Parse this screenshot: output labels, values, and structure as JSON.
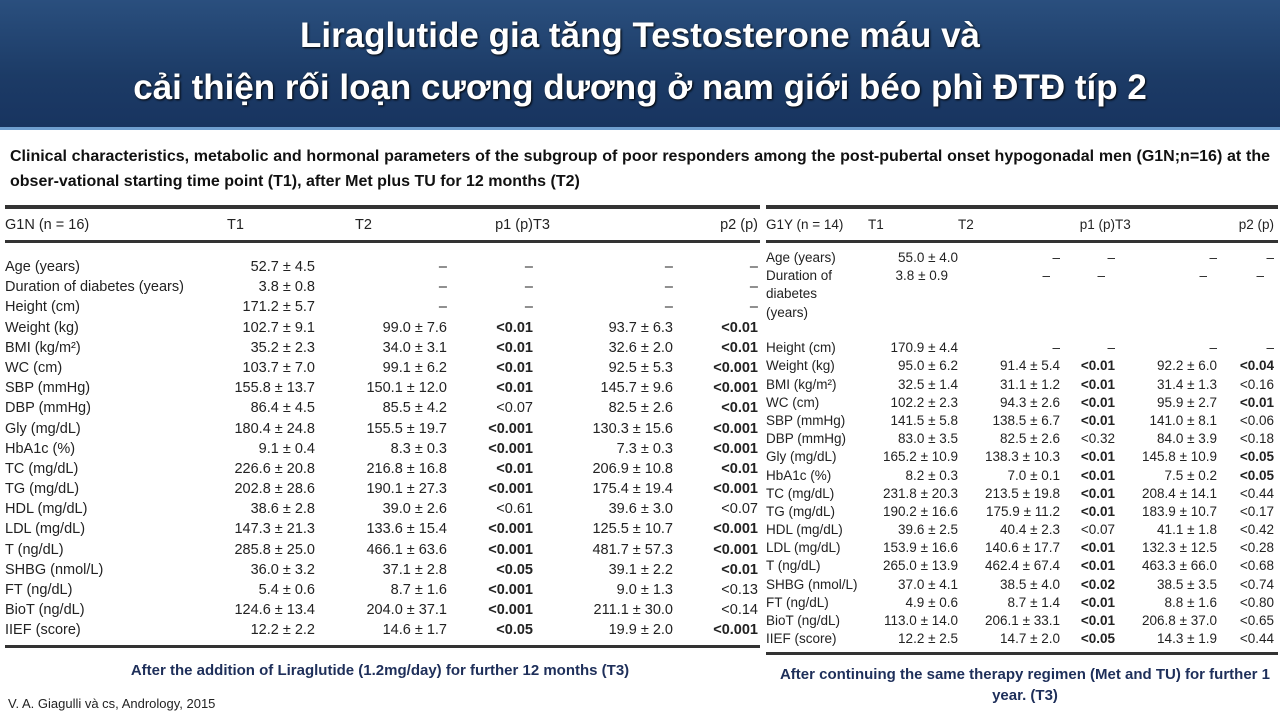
{
  "title": {
    "line1": "Liraglutide gia tăng Testosterone máu và",
    "line2": "cải thiện rối loạn cương dương ở nam giới béo phì ĐTĐ típ 2"
  },
  "subtitle": "Clinical characteristics, metabolic and hormonal parameters of the subgroup of poor responders among the post-pubertal onset hypogonadal men (G1N;n=16) at the obser-vational starting time point (T1), after Met plus TU for 12 months (T2)",
  "left_table": {
    "headers": [
      "G1N (n = 16)",
      "T1",
      "T2",
      "p1 (p)",
      "T3",
      "p2 (p)"
    ],
    "rows": [
      [
        "Age (years)",
        "52.7 ± 4.5",
        "–",
        "–",
        "–",
        "–"
      ],
      [
        "Duration of diabetes (years)",
        "3.8 ± 0.8",
        "–",
        "–",
        "–",
        "–"
      ],
      [
        "Height (cm)",
        "171.2 ± 5.7",
        "–",
        "–",
        "–",
        "–"
      ],
      [
        "Weight (kg)",
        "102.7 ± 9.1",
        "99.0 ± 7.6",
        "<0.01",
        "93.7 ± 6.3",
        "<0.01"
      ],
      [
        "BMI (kg/m²)",
        "35.2 ± 2.3",
        "34.0 ± 3.1",
        "<0.01",
        "32.6 ± 2.0",
        "<0.01"
      ],
      [
        "WC (cm)",
        "103.7 ± 7.0",
        "99.1 ± 6.2",
        "<0.01",
        "92.5 ± 5.3",
        "<0.001"
      ],
      [
        "SBP (mmHg)",
        "155.8 ± 13.7",
        "150.1 ± 12.0",
        "<0.01",
        "145.7 ± 9.6",
        "<0.001"
      ],
      [
        "DBP (mmHg)",
        "86.4 ± 4.5",
        "85.5 ± 4.2",
        "<0.07",
        "82.5 ± 2.6",
        "<0.01"
      ],
      [
        "Gly (mg/dL)",
        "180.4 ± 24.8",
        "155.5 ± 19.7",
        "<0.001",
        "130.3 ± 15.6",
        "<0.001"
      ],
      [
        "HbA1c (%)",
        "9.1 ± 0.4",
        "8.3 ± 0.3",
        "<0.001",
        "7.3 ± 0.3",
        "<0.001"
      ],
      [
        "TC (mg/dL)",
        "226.6 ± 20.8",
        "216.8 ± 16.8",
        "<0.01",
        "206.9 ± 10.8",
        "<0.01"
      ],
      [
        "TG (mg/dL)",
        "202.8 ± 28.6",
        "190.1 ± 27.3",
        "<0.001",
        "175.4 ± 19.4",
        "<0.001"
      ],
      [
        "HDL (mg/dL)",
        "38.6 ± 2.8",
        "39.0 ± 2.6",
        "<0.61",
        "39.6 ± 3.0",
        "<0.07"
      ],
      [
        "LDL (mg/dL)",
        "147.3 ± 21.3",
        "133.6 ± 15.4",
        "<0.001",
        "125.5 ± 10.7",
        "<0.001"
      ],
      [
        "T (ng/dL)",
        "285.8 ± 25.0",
        "466.1 ± 63.6",
        "<0.001",
        "481.7 ± 57.3",
        "<0.001"
      ],
      [
        "SHBG (nmol/L)",
        "36.0 ± 3.2",
        "37.1 ± 2.8",
        "<0.05",
        "39.1 ± 2.2",
        "<0.01"
      ],
      [
        "FT (ng/dL)",
        "5.4 ± 0.6",
        "8.7 ± 1.6",
        "<0.001",
        "9.0 ± 1.3",
        "<0.13"
      ],
      [
        "BioT (ng/dL)",
        "124.6 ± 13.4",
        "204.0 ± 37.1",
        "<0.001",
        "211.1 ± 30.0",
        "<0.14"
      ],
      [
        "IIEF (score)",
        "12.2 ± 2.2",
        "14.6 ± 1.7",
        "<0.05",
        "19.9 ± 2.0",
        "<0.001"
      ]
    ],
    "bold": [
      [
        0,
        0
      ],
      [
        0,
        0
      ],
      [
        0,
        0
      ],
      [
        1,
        1
      ],
      [
        1,
        1
      ],
      [
        1,
        1
      ],
      [
        1,
        1
      ],
      [
        0,
        1
      ],
      [
        1,
        1
      ],
      [
        1,
        1
      ],
      [
        1,
        1
      ],
      [
        1,
        1
      ],
      [
        0,
        0
      ],
      [
        1,
        1
      ],
      [
        1,
        1
      ],
      [
        1,
        1
      ],
      [
        1,
        0
      ],
      [
        1,
        0
      ],
      [
        1,
        1
      ]
    ]
  },
  "right_table": {
    "headers": [
      "G1Y (n = 14)",
      "T1",
      "T2",
      "p1 (p)",
      "T3",
      "p2 (p)"
    ],
    "rows": [
      [
        "Age (years)",
        "55.0 ± 4.0",
        "–",
        "–",
        "–",
        "–"
      ],
      [
        "Duration of diabetes (years)",
        "3.8 ± 0.9",
        "–",
        "–",
        "–",
        "–"
      ],
      [
        "Height (cm)",
        "170.9 ± 4.4",
        "–",
        "–",
        "–",
        "–"
      ],
      [
        "Weight (kg)",
        "95.0 ± 6.2",
        "91.4 ± 5.4",
        "<0.01",
        "92.2 ± 6.0",
        "<0.04"
      ],
      [
        "BMI (kg/m²)",
        "32.5 ± 1.4",
        "31.1 ± 1.2",
        "<0.01",
        "31.4 ± 1.3",
        "<0.16"
      ],
      [
        "WC (cm)",
        "102.2 ± 2.3",
        "94.3 ± 2.6",
        "<0.01",
        "95.9 ± 2.7",
        "<0.01"
      ],
      [
        "SBP (mmHg)",
        "141.5 ± 5.8",
        "138.5 ± 6.7",
        "<0.01",
        "141.0 ± 8.1",
        "<0.06"
      ],
      [
        "DBP (mmHg)",
        "83.0 ± 3.5",
        "82.5 ± 2.6",
        "<0.32",
        "84.0 ± 3.9",
        "<0.18"
      ],
      [
        "Gly (mg/dL)",
        "165.2 ± 10.9",
        "138.3 ± 10.3",
        "<0.01",
        "145.8 ± 10.9",
        "<0.05"
      ],
      [
        "HbA1c (%)",
        "8.2 ± 0.3",
        "7.0 ± 0.1",
        "<0.01",
        "7.5 ± 0.2",
        "<0.05"
      ],
      [
        "TC (mg/dL)",
        "231.8 ± 20.3",
        "213.5 ± 19.8",
        "<0.01",
        "208.4 ± 14.1",
        "<0.44"
      ],
      [
        "TG (mg/dL)",
        "190.2 ± 16.6",
        "175.9 ± 11.2",
        "<0.01",
        "183.9 ± 10.7",
        "<0.17"
      ],
      [
        "HDL (mg/dL)",
        "39.6 ± 2.5",
        "40.4 ± 2.3",
        "<0.07",
        "41.1 ± 1.8",
        "<0.42"
      ],
      [
        "LDL (mg/dL)",
        "153.9 ± 16.6",
        "140.6 ± 17.7",
        "<0.01",
        "132.3 ± 12.5",
        "<0.28"
      ],
      [
        "T (ng/dL)",
        "265.0 ± 13.9",
        "462.4 ± 67.4",
        "<0.01",
        "463.3 ± 66.0",
        "<0.68"
      ],
      [
        "SHBG (nmol/L)",
        "37.0 ± 4.1",
        "38.5 ± 4.0",
        "<0.02",
        "38.5 ± 3.5",
        "<0.74"
      ],
      [
        "FT (ng/dL)",
        "4.9 ± 0.6",
        "8.7 ± 1.4",
        "<0.01",
        "8.8 ± 1.6",
        "<0.80"
      ],
      [
        "BioT (ng/dL)",
        "113.0 ± 14.0",
        "206.1 ± 33.1",
        "<0.01",
        "206.8 ± 37.0",
        "<0.65"
      ],
      [
        "IIEF (score)",
        "12.2 ± 2.5",
        "14.7 ± 2.0",
        "<0.05",
        "14.3 ± 1.9",
        "<0.44"
      ]
    ],
    "bold": [
      [
        0,
        0
      ],
      [
        0,
        0
      ],
      [
        0,
        0
      ],
      [
        1,
        1
      ],
      [
        1,
        0
      ],
      [
        1,
        1
      ],
      [
        1,
        0
      ],
      [
        0,
        0
      ],
      [
        1,
        1
      ],
      [
        1,
        1
      ],
      [
        1,
        0
      ],
      [
        1,
        0
      ],
      [
        0,
        0
      ],
      [
        1,
        0
      ],
      [
        1,
        0
      ],
      [
        1,
        0
      ],
      [
        1,
        0
      ],
      [
        1,
        0
      ],
      [
        1,
        0
      ]
    ]
  },
  "caption_left": "After the addition of Liraglutide (1.2mg/day) for further 12 months (T3)",
  "caption_right": "After continuing the same therapy regimen (Met and TU) for further 1 year. (T3)",
  "citation": "V. A. Giagulli và cs, Andrology, 2015"
}
